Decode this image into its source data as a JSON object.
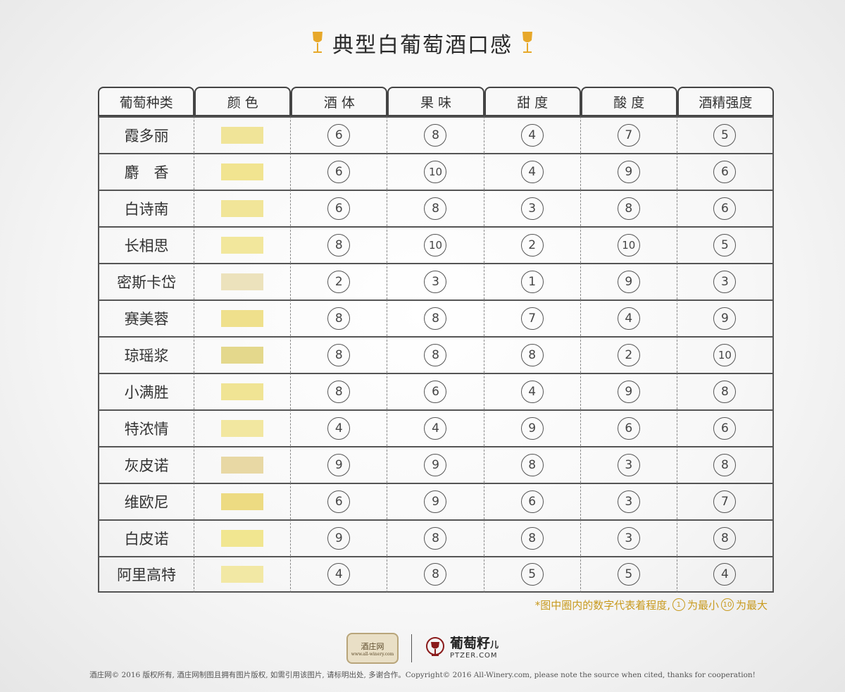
{
  "title": "典型白葡萄酒口感",
  "headers": [
    "葡萄种类",
    "颜 色",
    "酒 体",
    "果 味",
    "甜 度",
    "酸 度",
    "酒精强度"
  ],
  "rows": [
    {
      "name": "霞多丽",
      "color": "#f0e498",
      "values": [
        6,
        8,
        4,
        7,
        5
      ]
    },
    {
      "name": "麝　香",
      "color": "#f1e490",
      "values": [
        6,
        10,
        4,
        9,
        6
      ]
    },
    {
      "name": "白诗南",
      "color": "#f1e598",
      "values": [
        6,
        8,
        3,
        8,
        6
      ]
    },
    {
      "name": "长相思",
      "color": "#f2e79c",
      "values": [
        8,
        10,
        2,
        10,
        5
      ]
    },
    {
      "name": "密斯卡岱",
      "color": "#ece2bc",
      "values": [
        2,
        3,
        1,
        9,
        3
      ]
    },
    {
      "name": "赛美蓉",
      "color": "#efe08c",
      "values": [
        8,
        8,
        7,
        4,
        9
      ]
    },
    {
      "name": "琼瑶浆",
      "color": "#e4d88c",
      "values": [
        8,
        8,
        8,
        2,
        10
      ]
    },
    {
      "name": "小满胜",
      "color": "#f0e494",
      "values": [
        8,
        6,
        4,
        9,
        8
      ]
    },
    {
      "name": "特浓情",
      "color": "#f2e7a0",
      "values": [
        4,
        4,
        9,
        6,
        6
      ]
    },
    {
      "name": "灰皮诺",
      "color": "#e8d8a4",
      "values": [
        9,
        9,
        8,
        3,
        8
      ]
    },
    {
      "name": "维欧尼",
      "color": "#eddb82",
      "values": [
        6,
        9,
        6,
        3,
        7
      ]
    },
    {
      "name": "白皮诺",
      "color": "#f1e690",
      "values": [
        9,
        8,
        8,
        3,
        8
      ]
    },
    {
      "name": "阿里高特",
      "color": "#f2e8a4",
      "values": [
        4,
        8,
        5,
        5,
        4
      ]
    }
  ],
  "note": {
    "prefix": "*图中圈内的数字代表着程度,",
    "min_value": "1",
    "min_label": "为最小",
    "max_value": "10",
    "max_label": "为最大"
  },
  "logos": {
    "badge_main": "酒庄网",
    "badge_sub": "www.all-winery.com",
    "ptzer_cn": "葡萄籽",
    "ptzer_suffix": "儿",
    "ptzer_en": "PTZER.COM"
  },
  "copyright": "酒庄网© 2016 版权所有, 酒庄网制图且拥有图片版权, 如需引用该图片, 请标明出处, 多谢合作。Copyright© 2016 All-Winery.com, please note the source when cited, thanks for cooperation!",
  "icons": {
    "title_decoration": "wine-glass-icon",
    "logo": "wine-glass-logo-icon"
  },
  "accent_color": "#c89a1e"
}
